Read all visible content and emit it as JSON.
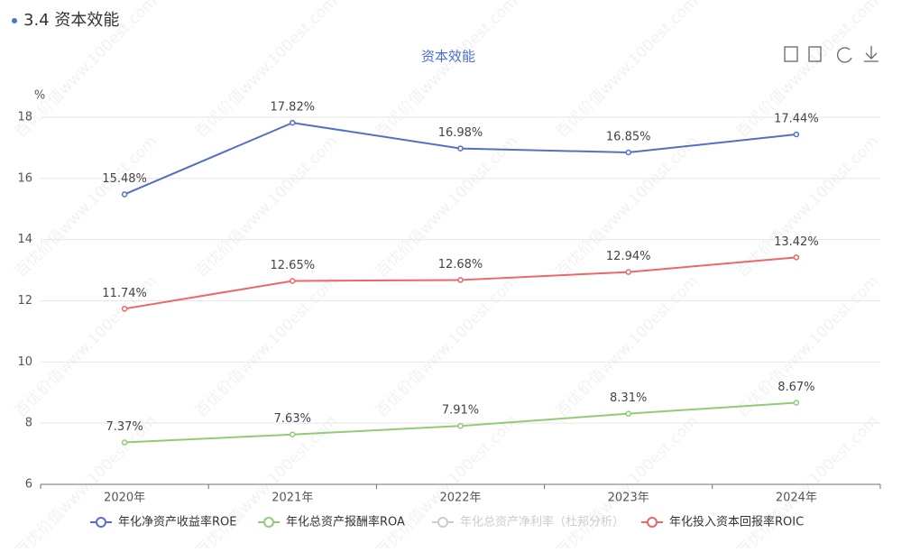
{
  "section_title": "3.4 资本效能",
  "watermark": "百优价值www.100est.com",
  "chart_data": {
    "type": "line",
    "title": "资本效能",
    "y_unit": "%",
    "categories": [
      "2020年",
      "2021年",
      "2022年",
      "2023年",
      "2024年"
    ],
    "ylim": [
      6,
      18
    ],
    "yticks": [
      6,
      8,
      10,
      12,
      14,
      16,
      18
    ],
    "grid": true,
    "legend": "bottom",
    "series": [
      {
        "name": "年化净资产收益率ROE",
        "color": "#5470c6",
        "values": [
          15.48,
          17.82,
          16.98,
          16.85,
          17.44
        ],
        "value_labels": [
          "15.48%",
          "17.82%",
          "16.98%",
          "16.85%",
          "17.44%"
        ]
      },
      {
        "name": "年化总资产报酬率ROA",
        "color": "#91cc75",
        "values": [
          7.37,
          7.63,
          7.91,
          8.31,
          8.67
        ],
        "value_labels": [
          "7.37%",
          "7.63%",
          "7.91%",
          "8.31%",
          "8.67%"
        ]
      },
      {
        "name": "年化总资产净利率（杜邦分析）",
        "color": "#cccccc",
        "hidden": true,
        "values": [
          null,
          null,
          null,
          null,
          null
        ]
      },
      {
        "name": "年化投入资本回报率ROIC",
        "color": "#ee6666",
        "values": [
          11.74,
          12.65,
          12.68,
          12.94,
          13.42
        ],
        "value_labels": [
          "11.74%",
          "12.65%",
          "12.68%",
          "12.94%",
          "13.42%"
        ]
      }
    ]
  }
}
